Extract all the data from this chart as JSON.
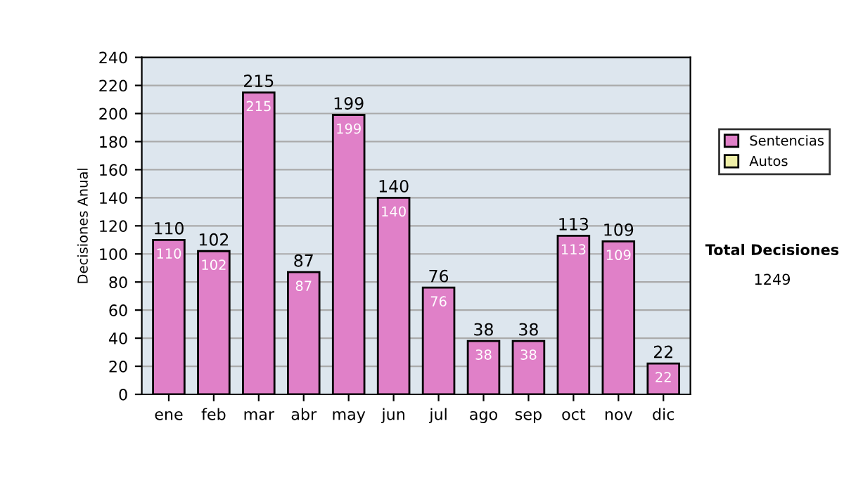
{
  "chart_data": {
    "type": "bar",
    "ylabel": "Decisiones Anual",
    "categories": [
      "ene",
      "feb",
      "mar",
      "abr",
      "may",
      "jun",
      "jul",
      "ago",
      "sep",
      "oct",
      "nov",
      "dic"
    ],
    "series": [
      {
        "name": "Sentencias",
        "color": "#e080c8",
        "values": [
          110,
          102,
          215,
          87,
          199,
          140,
          76,
          38,
          38,
          113,
          109,
          22
        ],
        "value_labels": [
          "110",
          "102",
          "215",
          "87",
          "199",
          "140",
          "76",
          "38",
          "38",
          "113",
          "109",
          "22"
        ]
      },
      {
        "name": "Autos",
        "color": "#f0f0a8",
        "values": [
          null,
          null,
          null,
          null,
          null,
          null,
          null,
          null,
          null,
          null,
          null,
          null
        ]
      }
    ],
    "stacked": true,
    "totals": [
      "110",
      "102",
      "215",
      "87",
      "199",
      "140",
      "76",
      "38",
      "38",
      "113",
      "109",
      "22"
    ],
    "ylim": [
      0,
      240
    ],
    "yticks": [
      0,
      20,
      40,
      60,
      80,
      100,
      120,
      140,
      160,
      180,
      200,
      220,
      240
    ],
    "grid": "y",
    "legend": "right",
    "annotations": [
      "Total Decisiones",
      "1249"
    ]
  }
}
